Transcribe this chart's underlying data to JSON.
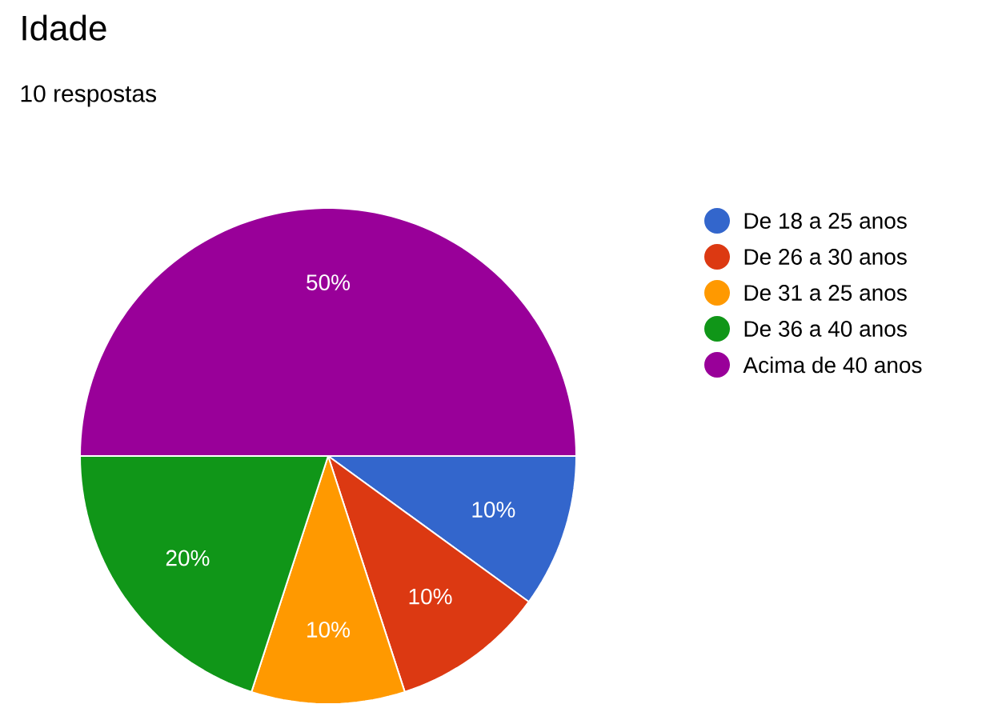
{
  "chart_data": {
    "type": "pie",
    "title": "Idade",
    "subtitle": "10 respostas",
    "categories": [
      "De 18 a 25 anos",
      "De 26 a 30 anos",
      "De 31 a 25 anos",
      "De 36 a 40 anos",
      "Acima de 40 anos"
    ],
    "values": [
      10,
      10,
      10,
      20,
      50
    ],
    "value_labels": [
      "10%",
      "10%",
      "10%",
      "20%",
      "50%"
    ],
    "colors": [
      "#3366cc",
      "#dc3912",
      "#ff9900",
      "#109618",
      "#990099"
    ],
    "legend": "right"
  }
}
